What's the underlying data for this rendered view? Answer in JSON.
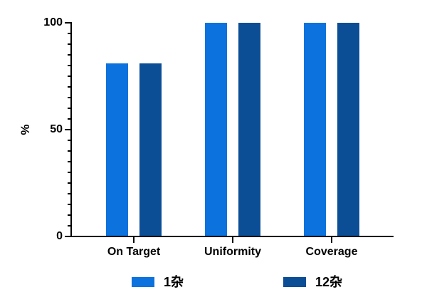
{
  "chart_data": {
    "type": "bar",
    "title": "",
    "categories": [
      "On Target",
      "Uniformity",
      "Coverage"
    ],
    "series": [
      {
        "name": "1杂",
        "color": "#0B72DE",
        "values": [
          81,
          100,
          100
        ]
      },
      {
        "name": "12杂",
        "color": "#0C4E96",
        "values": [
          81,
          100,
          100
        ]
      }
    ],
    "xlabel": "",
    "ylabel": "%",
    "ylim": [
      0,
      100
    ],
    "yticks": [
      0,
      50,
      100
    ],
    "minor_tick_interval": 5,
    "grid": false,
    "legend_position": "bottom",
    "axis_color": "#000000",
    "text_color": "#000000",
    "background": "#FFFFFF"
  }
}
